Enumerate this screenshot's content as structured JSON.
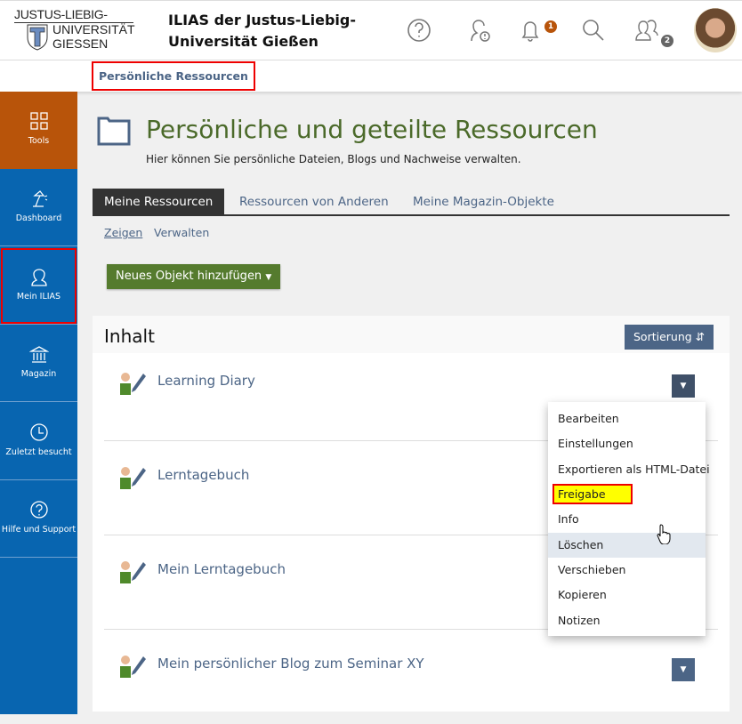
{
  "header": {
    "logo_text": [
      "JUSTUS-LIEBIG-",
      "UNIVERSITÄT",
      "GIESSEN"
    ],
    "app_title_line1": "ILIAS der Justus-Liebig-",
    "app_title_line2": "Universität Gießen",
    "notification_count": "1",
    "contacts_count": "2",
    "icons": [
      "help-icon",
      "user-alert-icon",
      "bell-icon",
      "search-icon",
      "contacts-icon",
      "avatar"
    ],
    "badge_color": "#b8540a"
  },
  "breadcrumb": {
    "label": "Persönliche Ressourcen"
  },
  "sidebar": {
    "items": [
      {
        "label": "Tools",
        "icon": "grid-icon"
      },
      {
        "label": "Dashboard",
        "icon": "lamp-icon"
      },
      {
        "label": "Mein ILIAS",
        "icon": "user-icon"
      },
      {
        "label": "Magazin",
        "icon": "bank-icon"
      },
      {
        "label": "Zuletzt besucht",
        "icon": "clock-icon"
      },
      {
        "label": "Hilfe und Support",
        "icon": "help-icon"
      }
    ]
  },
  "page": {
    "title": "Persönliche und geteilte Ressourcen",
    "subtitle": "Hier können Sie persönliche Dateien, Blogs und Nachweise verwalten."
  },
  "tabs": [
    {
      "label": "Meine Ressourcen",
      "active": true
    },
    {
      "label": "Ressourcen von Anderen"
    },
    {
      "label": "Meine Magazin-Objekte"
    }
  ],
  "subtabs": [
    {
      "label": "Zeigen",
      "active": true
    },
    {
      "label": "Verwalten"
    }
  ],
  "new_object_button": "Neues Objekt hinzufügen",
  "panel": {
    "title": "Inhalt",
    "sort_button": "Sortierung ⇵",
    "items": [
      {
        "name": "Learning Diary"
      },
      {
        "name": "Lerntagebuch"
      },
      {
        "name": "Mein Lerntagebuch"
      },
      {
        "name": "Mein persönlicher Blog zum Seminar XY"
      }
    ]
  },
  "action_menu": {
    "items": [
      "Bearbeiten",
      "Einstellungen",
      "Exportieren als HTML-Datei",
      "Freigabe",
      "Info",
      "Löschen",
      "Verschieben",
      "Kopieren",
      "Notizen"
    ],
    "highlighted": "Freigabe",
    "hovered": "Löschen"
  }
}
